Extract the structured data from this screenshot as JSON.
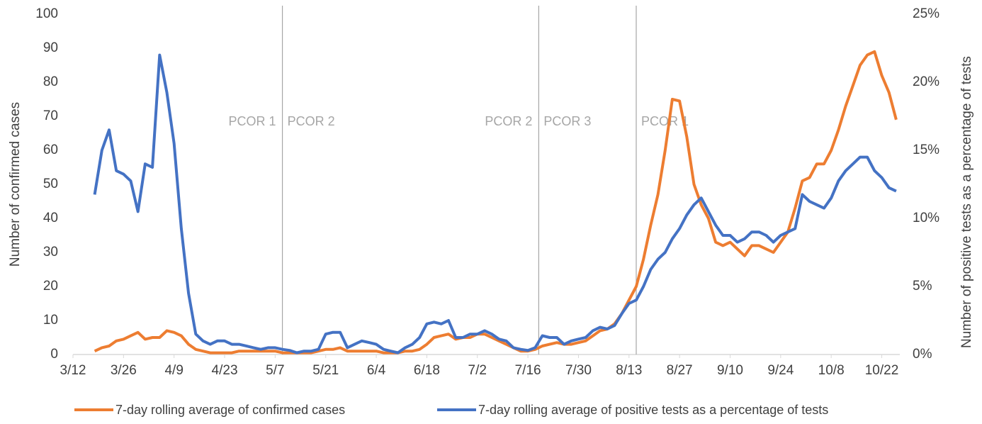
{
  "chart_data": {
    "type": "line",
    "x": [
      "3/18",
      "3/20",
      "3/22",
      "3/24",
      "3/26",
      "3/28",
      "3/30",
      "4/1",
      "4/3",
      "4/5",
      "4/7",
      "4/9",
      "4/11",
      "4/13",
      "4/15",
      "4/17",
      "4/19",
      "4/21",
      "4/23",
      "4/25",
      "4/27",
      "4/29",
      "5/1",
      "5/3",
      "5/5",
      "5/7",
      "5/9",
      "5/11",
      "5/13",
      "5/15",
      "5/17",
      "5/19",
      "5/21",
      "5/23",
      "5/25",
      "5/27",
      "5/29",
      "5/31",
      "6/2",
      "6/4",
      "6/6",
      "6/8",
      "6/10",
      "6/12",
      "6/14",
      "6/16",
      "6/18",
      "6/20",
      "6/22",
      "6/24",
      "6/26",
      "6/28",
      "6/30",
      "7/2",
      "7/4",
      "7/6",
      "7/8",
      "7/10",
      "7/12",
      "7/14",
      "7/16",
      "7/18",
      "7/20",
      "7/22",
      "7/24",
      "7/26",
      "7/28",
      "7/30",
      "8/1",
      "8/3",
      "8/5",
      "8/7",
      "8/9",
      "8/11",
      "8/13",
      "8/15",
      "8/17",
      "8/19",
      "8/21",
      "8/23",
      "8/25",
      "8/27",
      "8/29",
      "8/31",
      "9/2",
      "9/4",
      "9/6",
      "9/8",
      "9/10",
      "9/12",
      "9/14",
      "9/16",
      "9/18",
      "9/20",
      "9/22",
      "9/24",
      "9/26",
      "9/28",
      "9/30",
      "10/2",
      "10/4",
      "10/6",
      "10/8",
      "10/10",
      "10/12",
      "10/14",
      "10/16",
      "10/18",
      "10/20",
      "10/22",
      "10/24",
      "10/26"
    ],
    "series": [
      {
        "name": "7-day rolling average of confirmed cases",
        "color": "#ed7d31",
        "values": [
          1,
          2,
          2.5,
          4,
          4.5,
          5.5,
          6.5,
          4.5,
          5,
          5,
          7,
          6.5,
          5.5,
          3,
          1.5,
          1,
          0.5,
          0.5,
          0.5,
          0.5,
          1,
          1,
          1,
          1,
          1,
          1,
          0.5,
          0.5,
          0.5,
          0.5,
          0.5,
          1,
          1.5,
          1.5,
          2,
          1,
          1,
          1,
          1,
          1,
          0.5,
          0.5,
          0.5,
          1,
          1,
          1.5,
          3,
          5,
          5.5,
          6,
          4.5,
          5,
          5,
          6,
          6,
          5,
          4,
          3,
          2,
          1,
          1,
          1.5,
          2.5,
          3,
          3.5,
          3,
          3,
          3.5,
          4,
          5.5,
          7,
          7.5,
          9,
          12,
          16,
          20,
          28,
          38,
          47,
          60,
          75,
          74.5,
          64,
          50,
          44,
          40,
          33,
          32,
          33,
          31,
          29,
          32,
          32,
          31,
          30,
          33,
          36,
          43,
          51,
          52,
          56,
          56,
          60,
          66,
          73,
          79,
          85,
          88,
          89,
          82,
          77,
          69
        ]
      },
      {
        "name": "7-day rolling average of positive tests as a percentage of tests",
        "color": "#4472c4",
        "axis": "y2",
        "values": [
          11.75,
          15,
          16.5,
          13.5,
          13.25,
          12.75,
          10.5,
          14,
          13.75,
          22,
          19.25,
          15.5,
          9.25,
          4.5,
          1.5,
          1,
          0.75,
          1,
          1,
          0.75,
          0.75,
          0.63,
          0.5,
          0.38,
          0.5,
          0.5,
          0.38,
          0.3,
          0.13,
          0.25,
          0.25,
          0.38,
          1.5,
          1.63,
          1.63,
          0.5,
          0.75,
          1,
          0.88,
          0.75,
          0.38,
          0.25,
          0.13,
          0.5,
          0.75,
          1.25,
          2.25,
          2.38,
          2.25,
          2.5,
          1.25,
          1.25,
          1.5,
          1.5,
          1.75,
          1.5,
          1.13,
          1,
          0.5,
          0.38,
          0.3,
          0.5,
          1.38,
          1.25,
          1.25,
          0.75,
          1,
          1.13,
          1.25,
          1.75,
          2,
          1.88,
          2.13,
          3,
          3.75,
          4,
          5,
          6.25,
          7,
          7.5,
          8.5,
          9.25,
          10.25,
          11,
          11.5,
          10.5,
          9.5,
          8.75,
          8.75,
          8.25,
          8.5,
          9,
          9,
          8.75,
          8.25,
          8.75,
          9,
          9.25,
          11.75,
          11.25,
          11,
          10.75,
          11.5,
          12.75,
          13.5,
          14,
          14.5,
          14.5,
          13.5,
          13,
          12.25,
          12
        ]
      }
    ],
    "xlim": [
      "3/12",
      "10/27"
    ],
    "xticks": [
      "3/12",
      "3/26",
      "4/9",
      "4/23",
      "5/7",
      "5/21",
      "6/4",
      "6/18",
      "7/2",
      "7/16",
      "7/30",
      "8/13",
      "8/27",
      "9/10",
      "9/24",
      "10/8",
      "10/22"
    ],
    "ylim": [
      0,
      100
    ],
    "yticks": [
      0,
      10,
      20,
      30,
      40,
      50,
      60,
      70,
      80,
      90,
      100
    ],
    "y2lim": [
      0,
      25
    ],
    "y2ticks": [
      {
        "value": 0,
        "label": "0%"
      },
      {
        "value": 5,
        "label": "5%"
      },
      {
        "value": 10,
        "label": "10%"
      },
      {
        "value": 15,
        "label": "15%"
      },
      {
        "value": 20,
        "label": "20%"
      },
      {
        "value": 25,
        "label": "25%"
      }
    ],
    "ylabel": "Number of confirmed cases",
    "y2label": "Number of positive tests as a percentage of tests",
    "dividers": [
      {
        "x": "5/9",
        "before": "PCOR 1",
        "after": "PCOR 2"
      },
      {
        "x": "7/19",
        "before": "PCOR 2",
        "after": "PCOR 3"
      },
      {
        "x": "8/15",
        "after": "PCOR 1"
      }
    ],
    "legend": "bottom"
  }
}
